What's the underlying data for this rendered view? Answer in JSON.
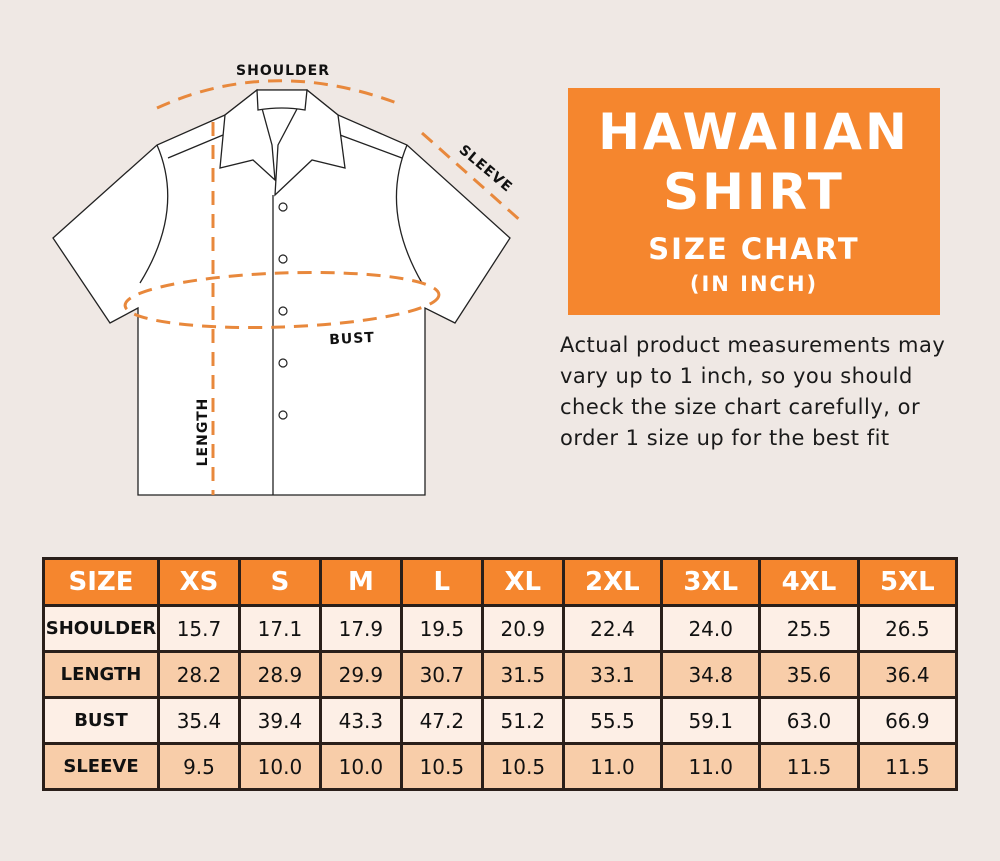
{
  "diagram": {
    "labels": {
      "shoulder": "SHOULDER",
      "sleeve": "SLEEVE",
      "bust": "BUST",
      "length": "LENGTH"
    }
  },
  "title": {
    "line1": "HAWAIIAN",
    "line2": "SHIRT",
    "line3": "SIZE CHART",
    "line4": "(IN INCH)"
  },
  "note": "Actual product measurements may vary up to 1 inch, so you should check the size chart carefully, or order 1 size up for the best fit",
  "colors": {
    "accent": "#f5862e",
    "row_light": "#fdefe6",
    "row_dark": "#f8cda9",
    "background": "#efe8e4"
  },
  "table": {
    "headers": [
      "SIZE",
      "XS",
      "S",
      "M",
      "L",
      "XL",
      "2XL",
      "3XL",
      "4XL",
      "5XL"
    ],
    "rows": [
      {
        "label": "SHOULDER",
        "values": [
          "15.7",
          "17.1",
          "17.9",
          "19.5",
          "20.9",
          "22.4",
          "24.0",
          "25.5",
          "26.5"
        ]
      },
      {
        "label": "LENGTH",
        "values": [
          "28.2",
          "28.9",
          "29.9",
          "30.7",
          "31.5",
          "33.1",
          "34.8",
          "35.6",
          "36.4"
        ]
      },
      {
        "label": "BUST",
        "values": [
          "35.4",
          "39.4",
          "43.3",
          "47.2",
          "51.2",
          "55.5",
          "59.1",
          "63.0",
          "66.9"
        ]
      },
      {
        "label": "SLEEVE",
        "values": [
          "9.5",
          "10.0",
          "10.0",
          "10.5",
          "10.5",
          "11.0",
          "11.0",
          "11.5",
          "11.5"
        ]
      }
    ]
  }
}
